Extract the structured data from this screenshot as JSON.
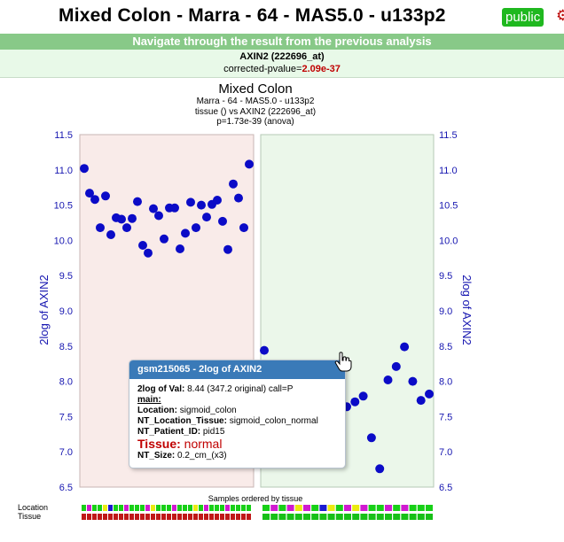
{
  "header": {
    "title": "Mixed Colon - Marra - 64 - MAS5.0 - u133p2",
    "badge": "public"
  },
  "nav": {
    "text": "Navigate through the result from the previous analysis"
  },
  "result": {
    "probe": "AXIN2 (222696_at)",
    "pvalue_label": "corrected-pvalue=",
    "pvalue": "2.09e-37"
  },
  "chart_data": {
    "type": "scatter",
    "title": "Mixed Colon",
    "subtitle_lines": [
      "Marra - 64 - MAS5.0 - u133p2",
      "tissue () vs AXIN2 (222696_at)",
      "p=1.73e-39 (anova)"
    ],
    "ylabel": "2log of AXIN2",
    "ylim": [
      6.5,
      11.5
    ],
    "yticks": [
      "6.5",
      "7.0",
      "7.5",
      "8.0",
      "8.5",
      "9.0",
      "9.5",
      "10.0",
      "10.5",
      "11.0",
      "11.5"
    ],
    "xlabel": "Samples ordered by tissue",
    "colors": {
      "point": "#0b0bc7",
      "axis_text": "#1515b0",
      "group1_fill": "#f9ebe9",
      "group2_fill": "#ebf7ea"
    },
    "groups": [
      {
        "values": [
          11.02,
          10.67,
          10.58,
          10.18,
          10.63,
          10.08,
          10.32,
          10.3,
          10.18,
          10.31,
          10.55,
          9.93,
          9.82,
          10.45,
          10.35,
          10.02,
          10.46,
          10.46,
          9.88,
          10.1,
          10.54,
          10.18,
          10.5,
          10.33,
          10.51,
          10.57,
          10.27,
          9.87,
          10.8,
          10.6,
          10.18,
          11.08
        ]
      },
      {
        "values": [
          8.44,
          8.16,
          7.86,
          7.97,
          7.63,
          7.96,
          7.44,
          7.69,
          7.78,
          7.75,
          7.64,
          7.71,
          7.79,
          7.2,
          6.76,
          8.02,
          8.21,
          8.49,
          8.0,
          7.73,
          7.82
        ]
      }
    ]
  },
  "legend_rows": {
    "location": "Location",
    "tissue": "Tissue"
  },
  "tooltip": {
    "title": "gsm215065 - 2log of AXIN2",
    "val_label": "2log of Val:",
    "val_value": "8.44 (347.2 original) call=P",
    "main_label": "main:",
    "location_label": "Location:",
    "location_value": "sigmoid_colon",
    "ntloc_label": "NT_Location_Tissue:",
    "ntloc_value": "sigmoid_colon_normal",
    "patient_label": "NT_Patient_ID:",
    "patient_value": "pid15",
    "tissue_label": "Tissue:",
    "tissue_value": "normal",
    "size_label": "NT_Size:",
    "size_value": "0.2_cm_(x3)"
  },
  "location_colors_group1": [
    "#17d017",
    "#d01ad0",
    "#17d017",
    "#17d017",
    "#ebeb10",
    "#1a1ad0",
    "#17d017",
    "#17d017",
    "#d01ad0",
    "#17d017",
    "#17d017",
    "#17d017",
    "#d01ad0",
    "#ebeb10",
    "#17d017",
    "#17d017",
    "#17d017",
    "#d01ad0",
    "#17d017",
    "#17d017",
    "#17d017",
    "#ebeb10",
    "#17d017",
    "#d01ad0",
    "#17d017",
    "#17d017",
    "#17d017",
    "#d01ad0",
    "#17d017",
    "#17d017",
    "#17d017",
    "#17d017"
  ],
  "location_colors_group2": [
    "#17d017",
    "#d01ad0",
    "#17d017",
    "#d01ad0",
    "#ebeb10",
    "#d01ad0",
    "#17d017",
    "#1a1ad0",
    "#ebeb10",
    "#17d017",
    "#d01ad0",
    "#ebeb10",
    "#d01ad0",
    "#17d017",
    "#17d017",
    "#d01ad0",
    "#17d017",
    "#d01ad0",
    "#17d017",
    "#17d017",
    "#17d017"
  ],
  "tissue_colors": {
    "group1": "#c01818",
    "group2": "#17c017"
  }
}
